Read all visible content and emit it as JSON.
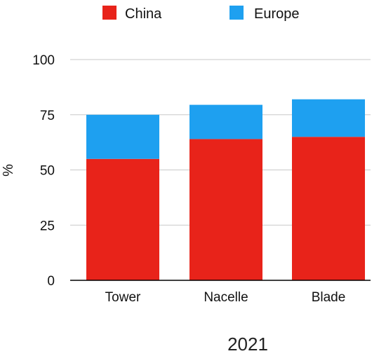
{
  "chart_data": {
    "type": "bar",
    "stacked": true,
    "categories": [
      "Tower",
      "Nacelle",
      "Blade"
    ],
    "series": [
      {
        "name": "China",
        "values": [
          55,
          64,
          65
        ],
        "color": "#e8231a"
      },
      {
        "name": "Europe",
        "values": [
          20,
          15.5,
          17
        ],
        "color": "#1ea0f0"
      }
    ],
    "ylabel": "%",
    "xlabel": "2021",
    "ylim": [
      0,
      100
    ],
    "yticks": [
      0,
      25,
      50,
      75,
      100
    ],
    "grid": true,
    "legend": "top"
  }
}
